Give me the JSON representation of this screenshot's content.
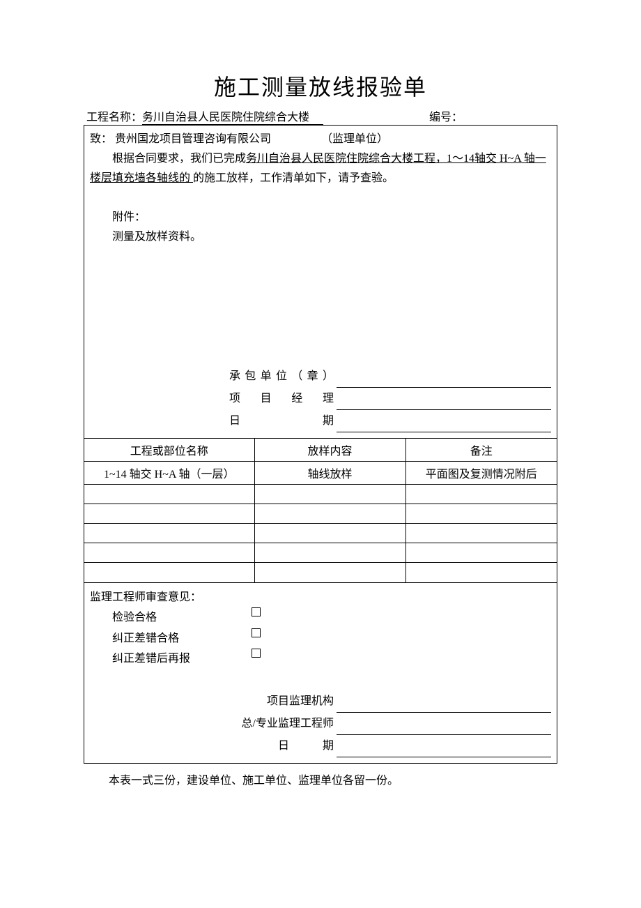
{
  "title": "施工测量放线报验单",
  "header": {
    "project_label": "工程名称：",
    "project_name": "务川自治县人民医院住院综合大楼",
    "number_label": "编号："
  },
  "top_section": {
    "to_label": "致：",
    "to_company": "贵州国龙项目管理咨询有限公司",
    "to_role": "（监理单位）",
    "intro_prefix": "根据合同要求，我们已完成",
    "intro_underlined": "务川自治县人民医院住院综合大楼工程，1～14轴交 H~A 轴一楼层填充墙各轴线的 ",
    "intro_suffix": "的施工放样，工作清单如下，请予查验。",
    "attachment_label": "附件：",
    "attachment_text": "测量及放样资料。",
    "sig_contractor": "承包单位（章）",
    "sig_pm": "项 目 经 理",
    "sig_date": "日　　　期"
  },
  "table": {
    "headers": [
      "工程或部位名称",
      "放样内容",
      "备注"
    ],
    "rows": [
      [
        "1~14 轴交 H~A 轴（一层）",
        "轴线放样",
        "平面图及复测情况附后"
      ],
      [
        "",
        "",
        ""
      ],
      [
        "",
        "",
        ""
      ],
      [
        "",
        "",
        ""
      ],
      [
        "",
        "",
        ""
      ],
      [
        "",
        "",
        ""
      ]
    ]
  },
  "bottom_section": {
    "review_title": "监理工程师审查意见：",
    "opt1": "检验合格",
    "opt2": "纠正差错合格",
    "opt3": "纠正差错后再报",
    "sig_org": "项目监理机构",
    "sig_engineer": "总/专业监理工程师",
    "sig_date": "日　　　期"
  },
  "footer": "本表一式三份，建设单位、施工单位、监理单位各留一份。"
}
